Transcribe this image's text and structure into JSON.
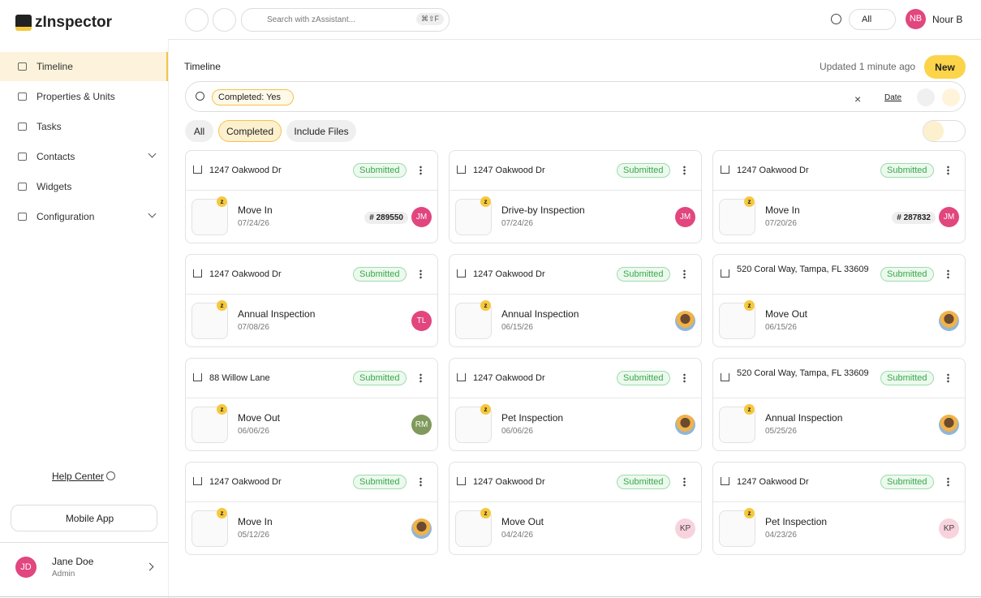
{
  "brand": "zInspector",
  "sidebar": {
    "nav": [
      "Timeline",
      "Properties & Units",
      "Tasks",
      "Contacts",
      "Widgets",
      "Configuration"
    ],
    "help": "Help Center",
    "mobile": "Mobile App",
    "user": {
      "initials": "JD",
      "name": "Jane Doe",
      "role": "Admin"
    }
  },
  "topbar": {
    "search": "Search with zAssistant...",
    "shortcut": "⌘⇧F",
    "filter": "All",
    "initials": "NB",
    "name": "Nour B"
  },
  "header": {
    "title": "Timeline",
    "updated": "Updated 1 minute ago",
    "new": "New"
  },
  "filters": {
    "chip": "Completed: Yes",
    "sort": "Date"
  },
  "tabs": [
    "All",
    "Completed",
    "Include Files"
  ],
  "cards": [
    {
      "address": "1247 Oakwood Dr",
      "status": "Submitted",
      "title": "Move In",
      "date": "07/24/26",
      "badge": "# 289550",
      "avatar": {
        "initials": "JM",
        "color": "#e2467e"
      }
    },
    {
      "address": "1247 Oakwood Dr",
      "status": "Submitted",
      "title": "Drive-by Inspection",
      "date": "07/24/26",
      "avatar": {
        "initials": "JM",
        "color": "#e2467e"
      }
    },
    {
      "address": "1247 Oakwood Dr",
      "status": "Submitted",
      "title": "Move In",
      "date": "07/20/26",
      "badge": "# 287832",
      "avatar": {
        "initials": "JM",
        "color": "#e2467e"
      }
    },
    {
      "address": "1247 Oakwood Dr",
      "status": "Submitted",
      "title": "Annual Inspection",
      "date": "07/08/26",
      "avatar": {
        "initials": "TL",
        "color": "#e2467e"
      }
    },
    {
      "address": "1247 Oakwood Dr",
      "status": "Submitted",
      "title": "Annual Inspection",
      "date": "06/15/26"
    },
    {
      "address": "520 Coral Way, Tampa, FL 33609",
      "status": "Submitted",
      "title": "Move Out",
      "date": "06/15/26"
    },
    {
      "address": "88 Willow Lane",
      "status": "Submitted",
      "title": "Move Out",
      "date": "06/06/26",
      "avatar": {
        "initials": "RM",
        "color": "#7f9a5c"
      }
    },
    {
      "address": "1247 Oakwood Dr",
      "status": "Submitted",
      "title": "Pet Inspection",
      "date": "06/06/26"
    },
    {
      "address": "520 Coral Way, Tampa, FL 33609",
      "status": "Submitted",
      "title": "Annual Inspection",
      "date": "05/25/26"
    },
    {
      "address": "1247 Oakwood Dr",
      "status": "Submitted",
      "title": "Move In",
      "date": "05/12/26"
    },
    {
      "address": "1247 Oakwood Dr",
      "status": "Submitted",
      "title": "Move Out",
      "date": "04/24/26",
      "avatar": {
        "initials": "KP",
        "color": "#f8d3de"
      }
    },
    {
      "address": "1247 Oakwood Dr",
      "status": "Submitted",
      "title": "Pet Inspection",
      "date": "04/23/26",
      "avatar": {
        "initials": "KP",
        "color": "#f8d3de"
      }
    }
  ]
}
